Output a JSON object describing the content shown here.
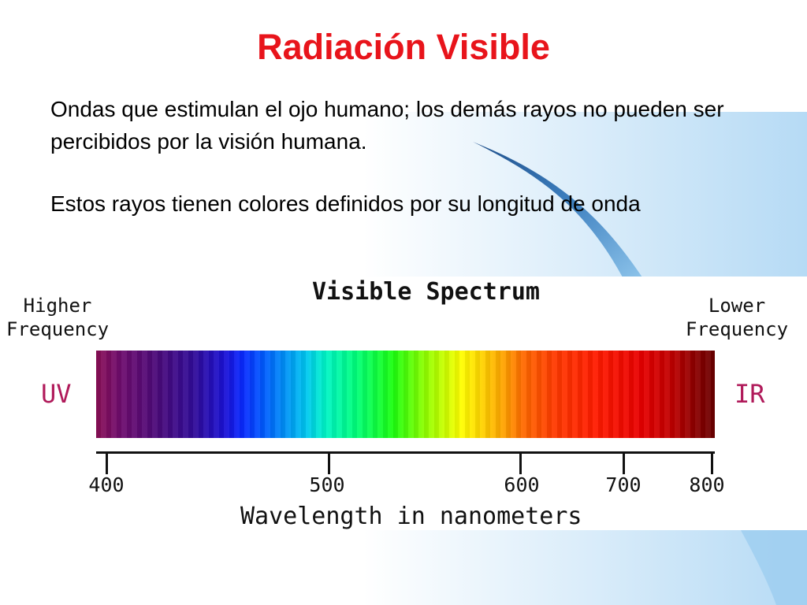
{
  "slide": {
    "title": "Radiación  Visible",
    "paragraphs": [
      "Ondas que estimulan el ojo humano; los demás rayos no pueden ser percibidos por la visión humana.",
      "Estos rayos tienen colores definidos por su longitud de onda"
    ]
  },
  "diagram": {
    "title": "Visible Spectrum",
    "left_label_line1": "Higher",
    "left_label_line2": "Frequency",
    "right_label_line1": "Lower",
    "right_label_line2": "Frequency",
    "uv_label": "UV",
    "ir_label": "IR",
    "axis_title": "Wavelength in nanometers",
    "ticks": [
      "400",
      "500",
      "600",
      "700",
      "800"
    ]
  },
  "colors": {
    "title": "#e8141b",
    "uv_ir_label": "#b01a5a",
    "background_accent": "#a9d4f3"
  }
}
